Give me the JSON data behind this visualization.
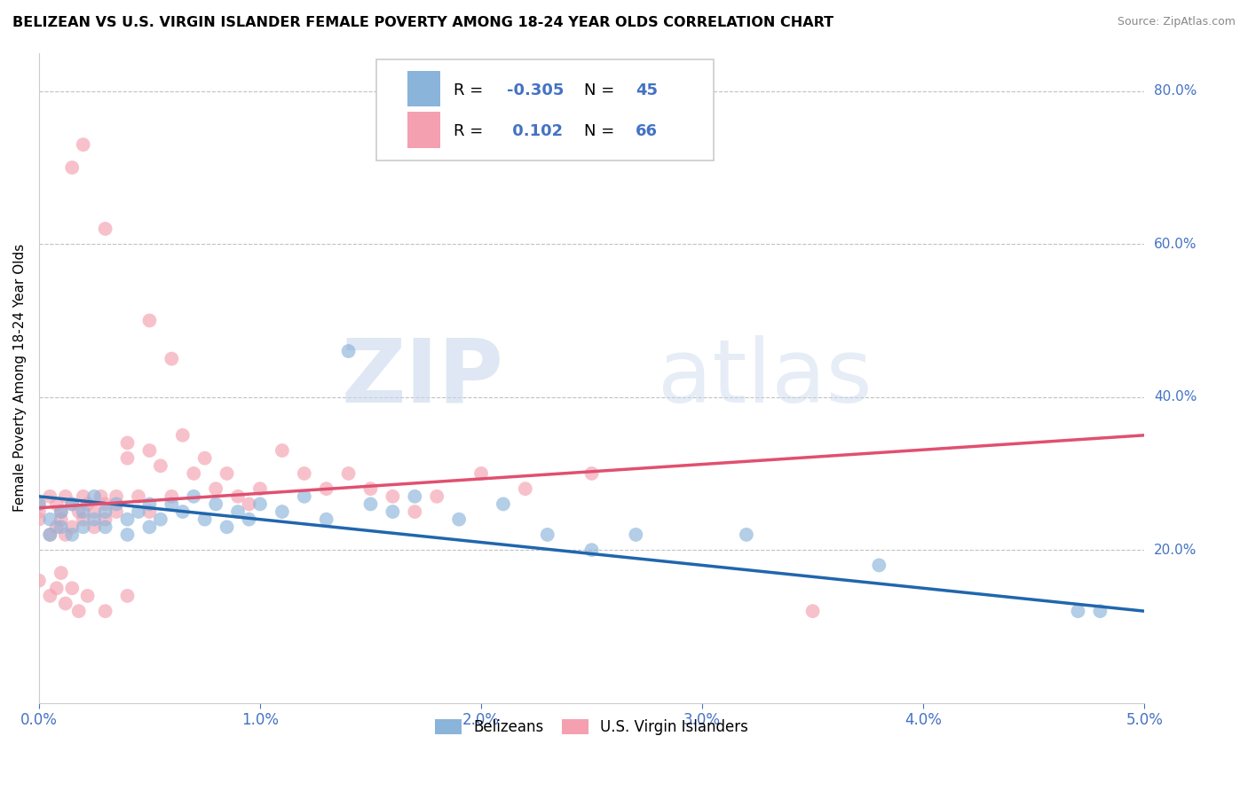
{
  "title": "BELIZEAN VS U.S. VIRGIN ISLANDER FEMALE POVERTY AMONG 18-24 YEAR OLDS CORRELATION CHART",
  "source": "Source: ZipAtlas.com",
  "ylabel": "Female Poverty Among 18-24 Year Olds",
  "xlim": [
    0.0,
    5.0
  ],
  "ylim": [
    0.0,
    85.0
  ],
  "blue_R": -0.305,
  "blue_N": 45,
  "pink_R": 0.102,
  "pink_N": 66,
  "blue_color": "#8ab4d9",
  "pink_color": "#f4a0b0",
  "blue_line_color": "#2166ac",
  "pink_line_color": "#e05070",
  "watermark": "ZIPatlas",
  "legend_label_blue": "Belizeans",
  "legend_label_pink": "U.S. Virgin Islanders",
  "blue_line_x0": 0.0,
  "blue_line_y0": 27.0,
  "blue_line_x1": 5.0,
  "blue_line_y1": 12.0,
  "pink_line_x0": 0.0,
  "pink_line_y0": 25.5,
  "pink_line_x1": 5.0,
  "pink_line_y1": 35.0,
  "blue_scatter_x": [
    0.0,
    0.05,
    0.05,
    0.1,
    0.1,
    0.15,
    0.15,
    0.2,
    0.2,
    0.25,
    0.25,
    0.3,
    0.3,
    0.35,
    0.4,
    0.4,
    0.45,
    0.5,
    0.5,
    0.55,
    0.6,
    0.65,
    0.7,
    0.75,
    0.8,
    0.85,
    0.9,
    0.95,
    1.0,
    1.1,
    1.2,
    1.3,
    1.4,
    1.5,
    1.6,
    1.7,
    1.9,
    2.1,
    2.3,
    2.5,
    2.7,
    3.2,
    3.8,
    4.7,
    4.8
  ],
  "blue_scatter_y": [
    26.0,
    24.0,
    22.0,
    23.0,
    25.0,
    26.0,
    22.0,
    25.0,
    23.0,
    27.0,
    24.0,
    25.0,
    23.0,
    26.0,
    24.0,
    22.0,
    25.0,
    26.0,
    23.0,
    24.0,
    26.0,
    25.0,
    27.0,
    24.0,
    26.0,
    23.0,
    25.0,
    24.0,
    26.0,
    25.0,
    27.0,
    24.0,
    46.0,
    26.0,
    25.0,
    27.0,
    24.0,
    26.0,
    22.0,
    20.0,
    22.0,
    22.0,
    18.0,
    12.0,
    12.0
  ],
  "pink_scatter_x": [
    0.0,
    0.0,
    0.0,
    0.05,
    0.05,
    0.08,
    0.08,
    0.1,
    0.1,
    0.12,
    0.12,
    0.15,
    0.15,
    0.18,
    0.2,
    0.2,
    0.22,
    0.25,
    0.25,
    0.28,
    0.3,
    0.3,
    0.35,
    0.35,
    0.4,
    0.4,
    0.45,
    0.5,
    0.5,
    0.55,
    0.6,
    0.65,
    0.7,
    0.75,
    0.8,
    0.85,
    0.9,
    0.95,
    1.0,
    1.1,
    1.2,
    1.3,
    1.4,
    1.5,
    1.6,
    1.7,
    1.8,
    2.0,
    2.2,
    2.5,
    0.15,
    0.2,
    0.3,
    0.5,
    0.6,
    3.5,
    0.0,
    0.05,
    0.08,
    0.1,
    0.12,
    0.15,
    0.18,
    0.22,
    0.3,
    0.4
  ],
  "pink_scatter_y": [
    26.0,
    25.0,
    24.0,
    27.0,
    22.0,
    26.0,
    23.0,
    25.0,
    24.0,
    27.0,
    22.0,
    26.0,
    23.0,
    25.0,
    27.0,
    24.0,
    26.0,
    25.0,
    23.0,
    27.0,
    26.0,
    24.0,
    27.0,
    25.0,
    34.0,
    32.0,
    27.0,
    33.0,
    25.0,
    31.0,
    27.0,
    35.0,
    30.0,
    32.0,
    28.0,
    30.0,
    27.0,
    26.0,
    28.0,
    33.0,
    30.0,
    28.0,
    30.0,
    28.0,
    27.0,
    25.0,
    27.0,
    30.0,
    28.0,
    30.0,
    70.0,
    73.0,
    62.0,
    50.0,
    45.0,
    12.0,
    16.0,
    14.0,
    15.0,
    17.0,
    13.0,
    15.0,
    12.0,
    14.0,
    12.0,
    14.0
  ]
}
